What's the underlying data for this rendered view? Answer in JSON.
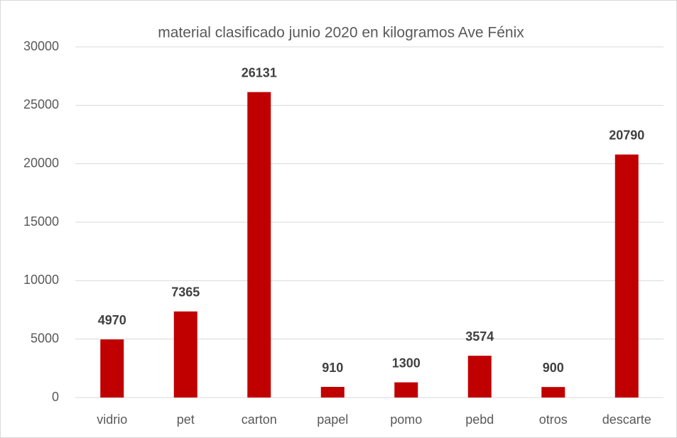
{
  "chart_data": {
    "type": "bar",
    "title": "material clasificado junio 2020 en kilogramos Ave Fénix",
    "categories": [
      "vidrio",
      "pet",
      "carton",
      "papel",
      "pomo",
      "pebd",
      "otros",
      "descarte"
    ],
    "values": [
      4970,
      7365,
      26131,
      910,
      1300,
      3574,
      900,
      20790
    ],
    "color": "#c00000",
    "ylim": [
      0,
      30000
    ],
    "yticks": [
      0,
      5000,
      10000,
      15000,
      20000,
      25000,
      30000
    ],
    "grid": true
  }
}
